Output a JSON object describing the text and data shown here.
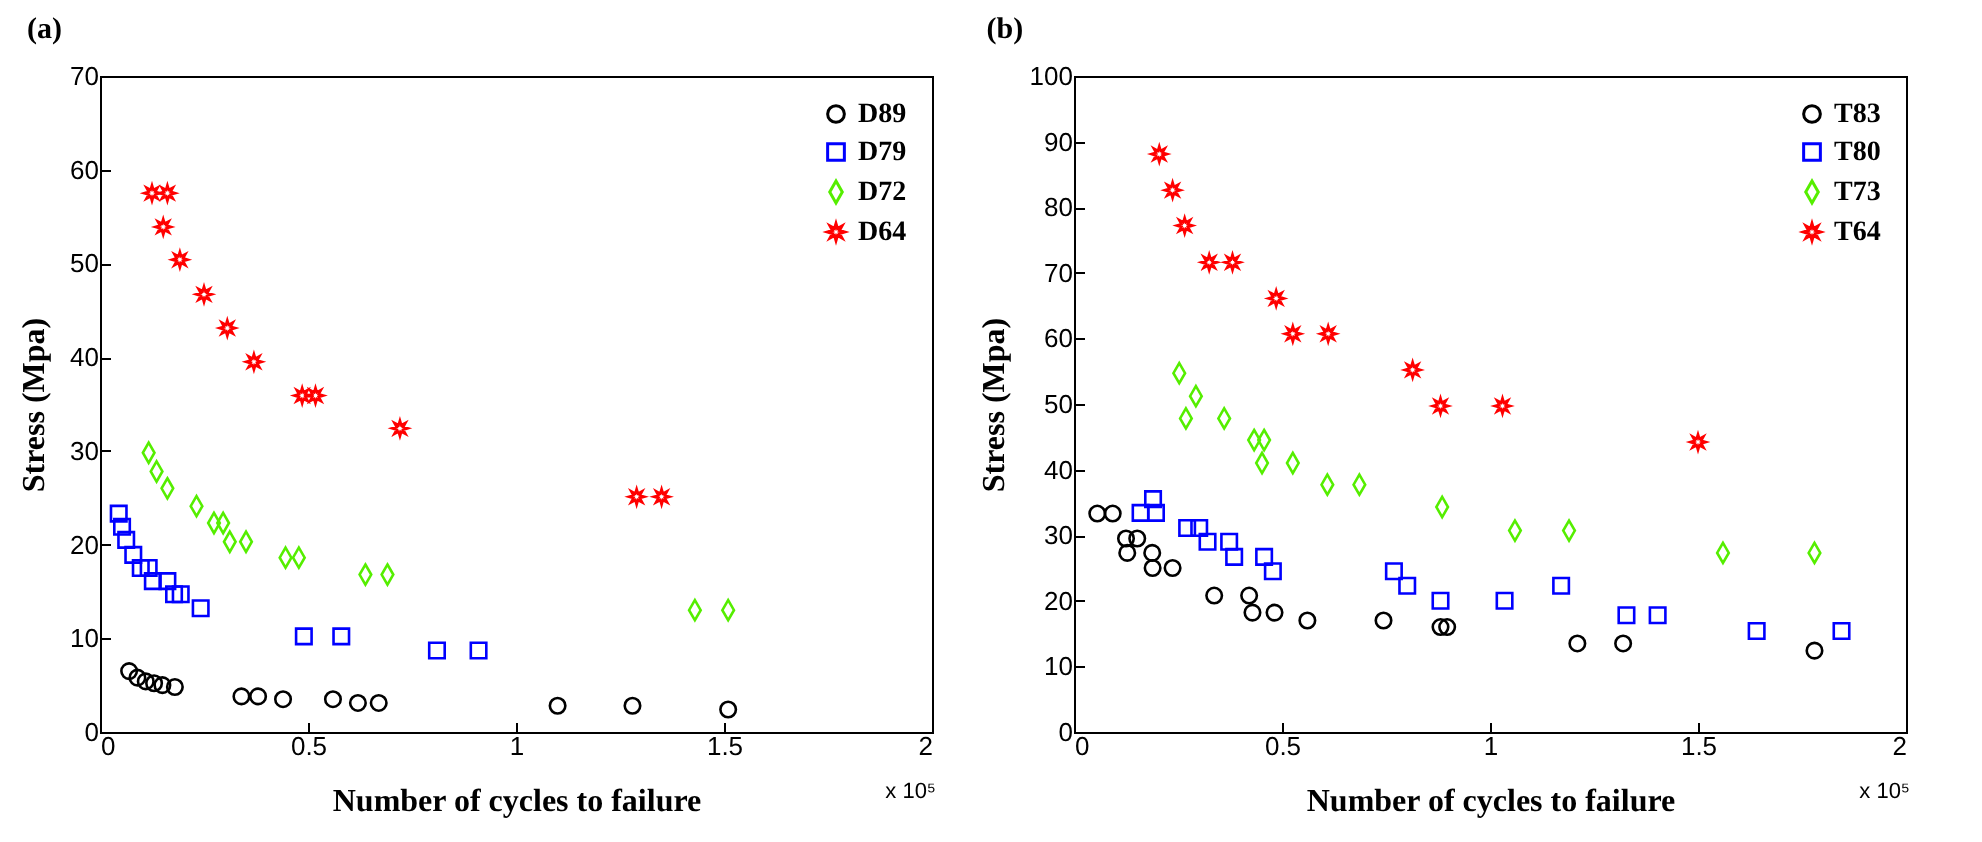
{
  "chart_data": [
    {
      "type": "scatter",
      "title": "(a)",
      "xlabel": "Number of cycles to failure",
      "ylabel": "Stress (Mpa)",
      "xlim": [
        0,
        2
      ],
      "xticks": [
        0,
        0.5,
        1,
        1.5,
        2
      ],
      "ylim": [
        0,
        70
      ],
      "yticks": [
        0,
        10,
        20,
        30,
        40,
        50,
        60,
        70
      ],
      "legend": "top right",
      "annotations": [
        "x 10⁵"
      ],
      "series": [
        {
          "name": "D89",
          "color": "#000000",
          "marker": "circle",
          "x": [
            0.07,
            0.09,
            0.11,
            0.13,
            0.15,
            0.18,
            0.34,
            0.38,
            0.44,
            0.56,
            0.62,
            0.67,
            1.1,
            1.28,
            1.51
          ],
          "values": [
            6.5,
            5.8,
            5.4,
            5.2,
            5,
            4.8,
            3.8,
            3.8,
            3.5,
            3.5,
            3.1,
            3.1,
            2.8,
            2.8,
            2.4
          ]
        },
        {
          "name": "D79",
          "color": "#0000ff",
          "marker": "square",
          "x": [
            0.045,
            0.053,
            0.063,
            0.08,
            0.098,
            0.117,
            0.127,
            0.162,
            0.178,
            0.194,
            0.242,
            0.49,
            0.58,
            0.81,
            0.91
          ],
          "values": [
            23.3,
            21.9,
            20.5,
            18.9,
            17.5,
            17.5,
            16.1,
            16.1,
            14.7,
            14.7,
            13.2,
            10.2,
            10.2,
            8.7,
            8.7
          ]
        },
        {
          "name": "D72",
          "color": "#55ee00",
          "marker": "diamond",
          "x": [
            0.117,
            0.136,
            0.162,
            0.232,
            0.274,
            0.296,
            0.312,
            0.351,
            0.446,
            0.478,
            0.638,
            0.691,
            1.43,
            1.51
          ],
          "values": [
            29.8,
            27.8,
            26,
            24.1,
            22.3,
            22.3,
            20.3,
            20.3,
            18.6,
            18.6,
            16.8,
            16.8,
            13,
            13
          ]
        },
        {
          "name": "D64",
          "color": "#ff0000",
          "marker": "star",
          "x": [
            0.125,
            0.162,
            0.152,
            0.192,
            0.25,
            0.306,
            0.37,
            0.486,
            0.518,
            0.721,
            1.29,
            1.35
          ],
          "values": [
            57.5,
            57.5,
            53.9,
            50.4,
            46.7,
            43.1,
            39.5,
            35.9,
            35.9,
            32.4,
            25.1,
            25.1
          ]
        }
      ]
    },
    {
      "type": "scatter",
      "title": "(b)",
      "xlabel": "Number of cycles to failure",
      "ylabel": "Stress (Mpa)",
      "xlim": [
        0,
        2
      ],
      "xticks": [
        0,
        0.5,
        1,
        1.5,
        2
      ],
      "ylim": [
        0,
        100
      ],
      "yticks": [
        0,
        10,
        20,
        30,
        40,
        50,
        60,
        70,
        80,
        90,
        100
      ],
      "legend": "top right",
      "annotations": [
        "x 10⁵"
      ],
      "series": [
        {
          "name": "T83",
          "color": "#000000",
          "marker": "circle",
          "x": [
            0.056,
            0.093,
            0.125,
            0.152,
            0.128,
            0.188,
            0.189,
            0.237,
            0.337,
            0.421,
            0.429,
            0.482,
            0.561,
            0.744,
            0.881,
            0.897,
            1.21,
            1.32,
            1.78
          ],
          "values": [
            33.3,
            33.3,
            29.5,
            29.5,
            27.3,
            27.3,
            25,
            25,
            20.8,
            20.8,
            18.2,
            18.2,
            17,
            17,
            16,
            16,
            13.5,
            13.5,
            12.4
          ]
        },
        {
          "name": "T80",
          "color": "#0000ff",
          "marker": "square",
          "x": [
            0.16,
            0.19,
            0.197,
            0.272,
            0.301,
            0.321,
            0.373,
            0.385,
            0.457,
            0.478,
            0.769,
            0.801,
            0.881,
            1.035,
            1.171,
            1.328,
            1.403,
            1.641,
            1.845
          ],
          "values": [
            33.4,
            35.5,
            33.4,
            31.1,
            31.1,
            29,
            29,
            26.7,
            26.7,
            24.5,
            24.5,
            22.3,
            20,
            20,
            22.3,
            17.8,
            17.8,
            15.4,
            15.4
          ]
        },
        {
          "name": "T73",
          "color": "#55ee00",
          "marker": "diamond",
          "x": [
            0.253,
            0.293,
            0.269,
            0.361,
            0.433,
            0.457,
            0.452,
            0.526,
            0.609,
            0.686,
            0.885,
            1.06,
            1.19,
            1.56,
            1.78
          ],
          "values": [
            54.7,
            51.2,
            47.8,
            47.8,
            44.5,
            44.5,
            41,
            41,
            37.7,
            37.7,
            34.3,
            30.7,
            30.7,
            27.3,
            27.3
          ]
        },
        {
          "name": "T64",
          "color": "#ff0000",
          "marker": "star",
          "x": [
            0.205,
            0.237,
            0.266,
            0.325,
            0.381,
            0.486,
            0.526,
            0.611,
            0.814,
            0.881,
            1.03,
            1.5
          ],
          "values": [
            88.1,
            82.6,
            77.2,
            71.6,
            71.6,
            66.1,
            60.7,
            60.7,
            55.2,
            49.7,
            49.7,
            44.2
          ]
        }
      ]
    }
  ]
}
